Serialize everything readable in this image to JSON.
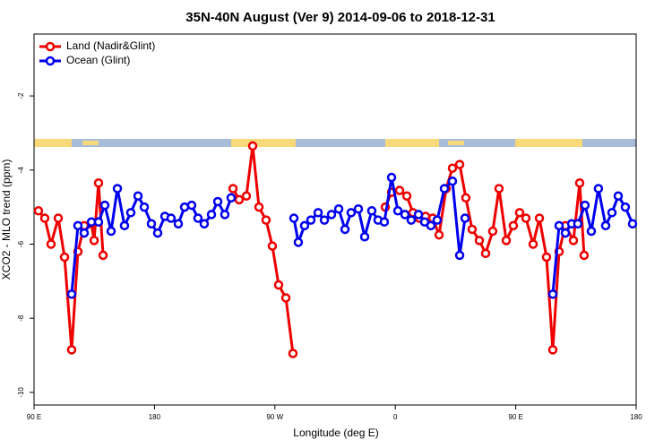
{
  "chart_data": {
    "type": "line",
    "title": "35N-40N August (Ver 9)   2014-09-06 to 2018-12-31",
    "xlabel": "Longitude (deg E)",
    "ylabel": "XCO2 - MLO trend (ppm)",
    "xlim": [
      90,
      540
    ],
    "ylim": [
      -10.34,
      -0.33
    ],
    "xticks": [
      {
        "value": 90,
        "label": "90 E"
      },
      180,
      {
        "value": 270,
        "label": "90 W"
      },
      {
        "value": 360,
        "label": "0"
      },
      {
        "value": 450,
        "label": "90 E"
      },
      {
        "value": 540,
        "label": "180"
      }
    ],
    "yticks": [
      -10,
      -8,
      -6,
      -4,
      -2
    ],
    "legend": "top-left",
    "series": [
      {
        "name": "Land (Nadir&Glint)",
        "color": "#ee0000",
        "x": [
          93.3,
          98.0,
          102.7,
          108.1,
          112.8,
          118.1,
          122.8,
          127.5,
          132.9,
          134.9,
          138.2,
          141.6,
          null,
          238.7,
          243.3,
          248.7,
          253.4,
          258.1,
          263.4,
          268.1,
          272.8,
          278.2,
          283.5,
          null,
          352.5,
          357.2,
          363.2,
          368.6,
          373.2,
          377.9,
          382.6,
          388.0,
          392.7,
          398.0,
          402.7,
          408.1,
          412.7,
          417.4,
          422.8,
          427.5,
          432.8,
          437.5,
          442.9,
          448.2,
          452.9,
          457.6,
          463.0,
          467.7,
          473.0,
          477.7,
          482.4,
          487.1,
          493.1,
          497.8,
          501.1
        ],
        "values": [
          -5.1,
          -5.3,
          -6.0,
          -5.3,
          -6.35,
          -8.85,
          -6.2,
          -5.5,
          -5.45,
          -5.9,
          -4.35,
          -6.3,
          null,
          -4.5,
          -4.8,
          -4.7,
          -3.35,
          -5.0,
          -5.35,
          -6.05,
          -7.1,
          -7.45,
          -8.95,
          null,
          -5.0,
          -4.6,
          -4.55,
          -4.7,
          -5.15,
          -5.3,
          -5.25,
          -5.3,
          -5.75,
          -4.5,
          -3.95,
          -3.85,
          -4.75,
          -5.6,
          -5.9,
          -6.25,
          -5.65,
          -4.5,
          -5.9,
          -5.5,
          -5.15,
          -5.3,
          -6.0,
          -5.3,
          -6.35,
          -8.85,
          -6.2,
          -5.5,
          -5.9,
          -4.35,
          -6.3
        ]
      },
      {
        "name": "Ocean (Glint)",
        "color": "#0000ee",
        "x": [
          118.1,
          122.8,
          127.5,
          132.9,
          138.2,
          142.9,
          147.6,
          152.3,
          157.6,
          162.3,
          167.7,
          172.4,
          177.7,
          182.4,
          187.8,
          192.4,
          197.8,
          202.5,
          207.8,
          212.5,
          217.2,
          222.6,
          227.3,
          232.6,
          237.3,
          null,
          284.2,
          287.5,
          292.2,
          296.9,
          302.3,
          307.0,
          312.3,
          317.7,
          322.4,
          327.0,
          332.4,
          337.1,
          342.4,
          347.1,
          351.8,
          357.2,
          361.9,
          367.2,
          371.9,
          377.3,
          381.9,
          386.6,
          391.3,
          396.7,
          402.7,
          408.1,
          412.1,
          null,
          477.7,
          482.4,
          487.1,
          491.8,
          496.4,
          501.8,
          506.5,
          511.8,
          517.2,
          521.9,
          526.6,
          531.9,
          537.3
        ],
        "values": [
          -7.35,
          -5.5,
          -5.7,
          -5.4,
          -5.4,
          -4.95,
          -5.65,
          -4.5,
          -5.5,
          -5.15,
          -4.7,
          -5.0,
          -5.45,
          -5.7,
          -5.25,
          -5.3,
          -5.45,
          -5.0,
          -4.95,
          -5.3,
          -5.45,
          -5.2,
          -4.85,
          -5.2,
          -4.75,
          null,
          -5.3,
          -5.95,
          -5.5,
          -5.35,
          -5.15,
          -5.35,
          -5.2,
          -5.05,
          -5.6,
          -5.15,
          -5.05,
          -5.8,
          -5.1,
          -5.35,
          -5.4,
          -4.2,
          -5.1,
          -5.2,
          -5.35,
          -5.2,
          -5.4,
          -5.5,
          -5.35,
          -4.5,
          -4.3,
          -6.3,
          -5.3,
          null,
          -7.35,
          -5.5,
          -5.7,
          -5.45,
          -5.45,
          -4.95,
          -5.65,
          -4.5,
          -5.5,
          -5.15,
          -4.7,
          -5.0,
          -5.45
        ]
      }
    ]
  }
}
